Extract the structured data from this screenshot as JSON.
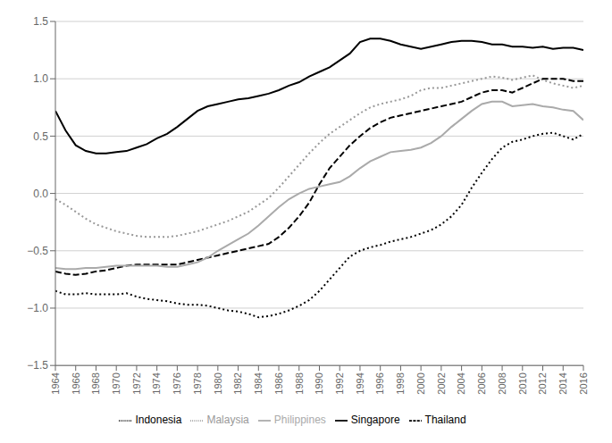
{
  "chart_data": {
    "type": "line",
    "x": [
      1964,
      1965,
      1966,
      1967,
      1968,
      1969,
      1970,
      1971,
      1972,
      1973,
      1974,
      1975,
      1976,
      1977,
      1978,
      1979,
      1980,
      1981,
      1982,
      1983,
      1984,
      1985,
      1986,
      1987,
      1988,
      1989,
      1990,
      1991,
      1992,
      1993,
      1994,
      1995,
      1996,
      1997,
      1998,
      1999,
      2000,
      2001,
      2002,
      2003,
      2004,
      2005,
      2006,
      2007,
      2008,
      2009,
      2010,
      2011,
      2012,
      2013,
      2014,
      2015,
      2016
    ],
    "series": [
      {
        "name": "Indonesia",
        "color": "#000000",
        "line_style": "dotted",
        "values": [
          -0.85,
          -0.88,
          -0.88,
          -0.87,
          -0.88,
          -0.88,
          -0.88,
          -0.87,
          -0.9,
          -0.92,
          -0.93,
          -0.94,
          -0.96,
          -0.97,
          -0.97,
          -0.98,
          -1.0,
          -1.02,
          -1.03,
          -1.05,
          -1.08,
          -1.07,
          -1.05,
          -1.02,
          -0.98,
          -0.93,
          -0.85,
          -0.75,
          -0.65,
          -0.55,
          -0.5,
          -0.47,
          -0.45,
          -0.42,
          -0.4,
          -0.38,
          -0.35,
          -0.32,
          -0.27,
          -0.2,
          -0.1,
          0.05,
          0.18,
          0.3,
          0.4,
          0.45,
          0.47,
          0.5,
          0.52,
          0.53,
          0.5,
          0.47,
          0.52
        ]
      },
      {
        "name": "Singapore",
        "color": "#000000",
        "line_style": "solid",
        "values": [
          0.72,
          0.55,
          0.42,
          0.37,
          0.35,
          0.35,
          0.36,
          0.37,
          0.4,
          0.43,
          0.48,
          0.52,
          0.58,
          0.65,
          0.72,
          0.76,
          0.78,
          0.8,
          0.82,
          0.83,
          0.85,
          0.87,
          0.9,
          0.94,
          0.97,
          1.02,
          1.06,
          1.1,
          1.16,
          1.22,
          1.32,
          1.35,
          1.35,
          1.33,
          1.3,
          1.28,
          1.26,
          1.28,
          1.3,
          1.32,
          1.33,
          1.33,
          1.32,
          1.3,
          1.3,
          1.28,
          1.28,
          1.27,
          1.28,
          1.26,
          1.27,
          1.27,
          1.25
        ]
      },
      {
        "name": "Malaysia",
        "color": "#999999",
        "line_style": "dotted",
        "values": [
          -0.05,
          -0.1,
          -0.16,
          -0.22,
          -0.27,
          -0.3,
          -0.33,
          -0.35,
          -0.37,
          -0.38,
          -0.38,
          -0.38,
          -0.37,
          -0.35,
          -0.33,
          -0.3,
          -0.27,
          -0.24,
          -0.2,
          -0.16,
          -0.1,
          -0.04,
          0.05,
          0.15,
          0.25,
          0.35,
          0.44,
          0.52,
          0.58,
          0.64,
          0.7,
          0.75,
          0.78,
          0.8,
          0.82,
          0.85,
          0.9,
          0.92,
          0.92,
          0.94,
          0.96,
          0.98,
          1.0,
          1.02,
          1.01,
          0.99,
          1.01,
          1.03,
          0.99,
          0.96,
          0.94,
          0.92,
          0.94
        ]
      },
      {
        "name": "Thailand",
        "color": "#000000",
        "line_style": "dashed",
        "values": [
          -0.68,
          -0.7,
          -0.71,
          -0.7,
          -0.68,
          -0.67,
          -0.65,
          -0.63,
          -0.62,
          -0.62,
          -0.62,
          -0.62,
          -0.62,
          -0.6,
          -0.58,
          -0.56,
          -0.54,
          -0.52,
          -0.5,
          -0.48,
          -0.46,
          -0.44,
          -0.38,
          -0.3,
          -0.2,
          -0.08,
          0.08,
          0.22,
          0.32,
          0.42,
          0.5,
          0.57,
          0.62,
          0.66,
          0.68,
          0.7,
          0.72,
          0.74,
          0.76,
          0.78,
          0.8,
          0.84,
          0.88,
          0.9,
          0.9,
          0.88,
          0.92,
          0.96,
          1.0,
          1.0,
          1.0,
          0.98,
          0.98
        ]
      },
      {
        "name": "Philippines",
        "color": "#aaaaaa",
        "line_style": "solid",
        "values": [
          -0.65,
          -0.66,
          -0.66,
          -0.65,
          -0.65,
          -0.64,
          -0.63,
          -0.63,
          -0.63,
          -0.63,
          -0.63,
          -0.64,
          -0.64,
          -0.62,
          -0.6,
          -0.56,
          -0.5,
          -0.45,
          -0.4,
          -0.35,
          -0.28,
          -0.2,
          -0.12,
          -0.05,
          0.0,
          0.04,
          0.06,
          0.08,
          0.1,
          0.15,
          0.22,
          0.28,
          0.32,
          0.36,
          0.37,
          0.38,
          0.4,
          0.44,
          0.5,
          0.58,
          0.65,
          0.72,
          0.78,
          0.8,
          0.8,
          0.76,
          0.77,
          0.78,
          0.76,
          0.75,
          0.73,
          0.72,
          0.64
        ]
      }
    ],
    "xlim": [
      1964,
      2016
    ],
    "xticks": [
      1964,
      1966,
      1968,
      1970,
      1972,
      1974,
      1976,
      1978,
      1980,
      1982,
      1984,
      1986,
      1988,
      1990,
      1992,
      1994,
      1996,
      1998,
      2000,
      2002,
      2004,
      2006,
      2008,
      2010,
      2012,
      2014,
      2016
    ],
    "ylim": [
      -1.5,
      1.5
    ],
    "yticks": [
      {
        "value": -1.5,
        "label": "−1.5"
      },
      {
        "value": -1.0,
        "label": "−1.0"
      },
      {
        "value": -0.5,
        "label": "−0.5"
      },
      {
        "value": 0.0,
        "label": "0.0"
      },
      0.5,
      {
        "value": 1.0,
        "label": "1.0"
      },
      1.5
    ],
    "grid": "y",
    "legend": "bottom"
  }
}
